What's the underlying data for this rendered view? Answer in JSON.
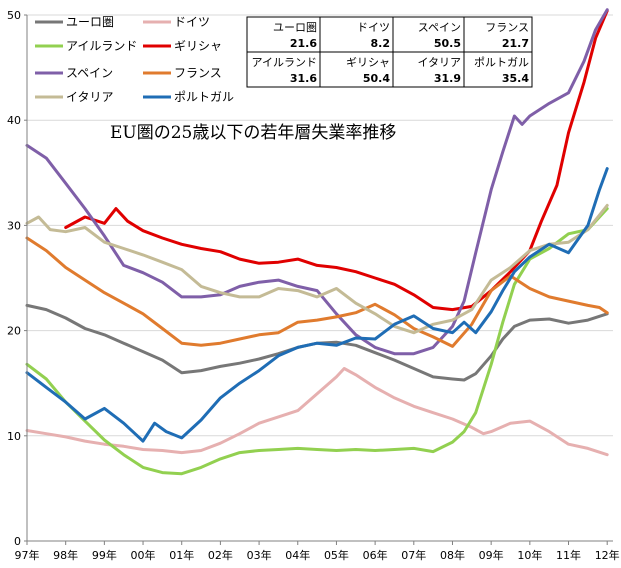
{
  "chart_data": {
    "type": "line",
    "title": "EU圏の25歳以下の若年層失業率推移",
    "xlabel": "",
    "ylabel": "",
    "ylim": [
      0,
      50
    ],
    "xlim": [
      1997,
      2012.15
    ],
    "y_ticks": [
      0,
      10,
      20,
      30,
      40,
      50
    ],
    "x_ticks": [
      {
        "value": 1997,
        "label": "97年"
      },
      {
        "value": 1998,
        "label": "98年"
      },
      {
        "value": 1999,
        "label": "99年"
      },
      {
        "value": 2000,
        "label": "00年"
      },
      {
        "value": 2001,
        "label": "01年"
      },
      {
        "value": 2002,
        "label": "02年"
      },
      {
        "value": 2003,
        "label": "03年"
      },
      {
        "value": 2004,
        "label": "04年"
      },
      {
        "value": 2005,
        "label": "05年"
      },
      {
        "value": 2006,
        "label": "06年"
      },
      {
        "value": 2007,
        "label": "07年"
      },
      {
        "value": 2008,
        "label": "08年"
      },
      {
        "value": 2009,
        "label": "09年"
      },
      {
        "value": 2010,
        "label": "10年"
      },
      {
        "value": 2011,
        "label": "11年"
      },
      {
        "value": 2012,
        "label": "12年"
      }
    ],
    "grid": true,
    "legend_position": "top-left",
    "series": [
      {
        "key": "euro",
        "name": "ユーロ圏",
        "color": "#777777",
        "points": [
          [
            1997,
            22.4
          ],
          [
            1997.5,
            22
          ],
          [
            1998,
            21.2
          ],
          [
            1998.5,
            20.2
          ],
          [
            1999,
            19.6
          ],
          [
            1999.5,
            18.8
          ],
          [
            2000,
            18
          ],
          [
            2000.5,
            17.2
          ],
          [
            2001,
            16
          ],
          [
            2001.5,
            16.2
          ],
          [
            2002,
            16.6
          ],
          [
            2002.5,
            16.9
          ],
          [
            2003,
            17.3
          ],
          [
            2003.5,
            17.8
          ],
          [
            2004,
            18.4
          ],
          [
            2004.5,
            18.8
          ],
          [
            2005,
            18.9
          ],
          [
            2005.5,
            18.6
          ],
          [
            2006,
            17.9
          ],
          [
            2006.5,
            17.2
          ],
          [
            2007,
            16.4
          ],
          [
            2007.5,
            15.6
          ],
          [
            2008,
            15.4
          ],
          [
            2008.3,
            15.3
          ],
          [
            2008.6,
            15.9
          ],
          [
            2009,
            17.6
          ],
          [
            2009.3,
            19.2
          ],
          [
            2009.6,
            20.4
          ],
          [
            2010,
            21
          ],
          [
            2010.5,
            21.1
          ],
          [
            2011,
            20.7
          ],
          [
            2011.5,
            21
          ],
          [
            2012,
            21.6
          ]
        ]
      },
      {
        "key": "germany",
        "name": "ドイツ",
        "color": "#e6b0b0",
        "points": [
          [
            1997,
            10.5
          ],
          [
            1997.5,
            10.2
          ],
          [
            1998,
            9.9
          ],
          [
            1998.5,
            9.5
          ],
          [
            1999,
            9.2
          ],
          [
            1999.5,
            9
          ],
          [
            2000,
            8.7
          ],
          [
            2000.5,
            8.6
          ],
          [
            2001,
            8.4
          ],
          [
            2001.5,
            8.6
          ],
          [
            2002,
            9.3
          ],
          [
            2002.5,
            10.2
          ],
          [
            2003,
            11.2
          ],
          [
            2003.5,
            11.8
          ],
          [
            2004,
            12.4
          ],
          [
            2004.5,
            14
          ],
          [
            2005,
            15.6
          ],
          [
            2005.2,
            16.4
          ],
          [
            2005.5,
            15.8
          ],
          [
            2006,
            14.6
          ],
          [
            2006.5,
            13.6
          ],
          [
            2007,
            12.8
          ],
          [
            2007.5,
            12.2
          ],
          [
            2008,
            11.6
          ],
          [
            2008.5,
            10.8
          ],
          [
            2008.8,
            10.2
          ],
          [
            2009,
            10.4
          ],
          [
            2009.5,
            11.2
          ],
          [
            2010,
            11.4
          ],
          [
            2010.5,
            10.4
          ],
          [
            2011,
            9.2
          ],
          [
            2011.5,
            8.8
          ],
          [
            2012,
            8.2
          ]
        ]
      },
      {
        "key": "ireland",
        "name": "アイルランド",
        "color": "#92d050",
        "points": [
          [
            1997,
            16.8
          ],
          [
            1997.5,
            15.4
          ],
          [
            1998,
            13.2
          ],
          [
            1998.5,
            11.4
          ],
          [
            1999,
            9.6
          ],
          [
            1999.5,
            8.2
          ],
          [
            2000,
            7
          ],
          [
            2000.5,
            6.5
          ],
          [
            2001,
            6.4
          ],
          [
            2001.5,
            7
          ],
          [
            2002,
            7.8
          ],
          [
            2002.5,
            8.4
          ],
          [
            2003,
            8.6
          ],
          [
            2003.5,
            8.7
          ],
          [
            2004,
            8.8
          ],
          [
            2004.5,
            8.7
          ],
          [
            2005,
            8.6
          ],
          [
            2005.5,
            8.7
          ],
          [
            2006,
            8.6
          ],
          [
            2006.5,
            8.7
          ],
          [
            2007,
            8.8
          ],
          [
            2007.5,
            8.5
          ],
          [
            2008,
            9.4
          ],
          [
            2008.3,
            10.4
          ],
          [
            2008.6,
            12.2
          ],
          [
            2009,
            16.8
          ],
          [
            2009.3,
            20.8
          ],
          [
            2009.6,
            24.4
          ],
          [
            2010,
            26.8
          ],
          [
            2010.5,
            27.8
          ],
          [
            2011,
            29.2
          ],
          [
            2011.5,
            29.6
          ],
          [
            2012,
            31.6
          ]
        ]
      },
      {
        "key": "greece",
        "name": "ギリシャ",
        "color": "#e00000",
        "points": [
          [
            1998,
            29.8
          ],
          [
            1998.5,
            30.8
          ],
          [
            1999,
            30.2
          ],
          [
            1999.3,
            31.6
          ],
          [
            1999.6,
            30.4
          ],
          [
            2000,
            29.5
          ],
          [
            2000.5,
            28.8
          ],
          [
            2001,
            28.2
          ],
          [
            2001.5,
            27.8
          ],
          [
            2002,
            27.5
          ],
          [
            2002.5,
            26.8
          ],
          [
            2003,
            26.4
          ],
          [
            2003.5,
            26.5
          ],
          [
            2004,
            26.8
          ],
          [
            2004.5,
            26.2
          ],
          [
            2005,
            26
          ],
          [
            2005.5,
            25.6
          ],
          [
            2006,
            25
          ],
          [
            2006.5,
            24.4
          ],
          [
            2007,
            23.4
          ],
          [
            2007.5,
            22.2
          ],
          [
            2008,
            22
          ],
          [
            2008.5,
            22.3
          ],
          [
            2009,
            23.8
          ],
          [
            2009.5,
            25.6
          ],
          [
            2010,
            27.6
          ],
          [
            2010.3,
            30.4
          ],
          [
            2010.7,
            33.8
          ],
          [
            2011,
            38.8
          ],
          [
            2011.4,
            43.6
          ],
          [
            2011.7,
            47.8
          ],
          [
            2012,
            50.4
          ]
        ]
      },
      {
        "key": "spain",
        "name": "スペイン",
        "color": "#7f5fa8",
        "points": [
          [
            1997,
            37.6
          ],
          [
            1997.5,
            36.4
          ],
          [
            1998,
            34
          ],
          [
            1998.5,
            31.6
          ],
          [
            1999,
            29
          ],
          [
            1999.5,
            26.2
          ],
          [
            2000,
            25.5
          ],
          [
            2000.5,
            24.6
          ],
          [
            2001,
            23.2
          ],
          [
            2001.5,
            23.2
          ],
          [
            2002,
            23.4
          ],
          [
            2002.5,
            24.2
          ],
          [
            2003,
            24.6
          ],
          [
            2003.5,
            24.8
          ],
          [
            2004,
            24.2
          ],
          [
            2004.5,
            23.8
          ],
          [
            2005,
            21.6
          ],
          [
            2005.5,
            19.6
          ],
          [
            2006,
            18.4
          ],
          [
            2006.5,
            17.8
          ],
          [
            2007,
            17.8
          ],
          [
            2007.5,
            18.4
          ],
          [
            2008,
            20.4
          ],
          [
            2008.3,
            22.8
          ],
          [
            2008.6,
            27.4
          ],
          [
            2009,
            33.4
          ],
          [
            2009.3,
            37
          ],
          [
            2009.6,
            40.4
          ],
          [
            2009.8,
            39.6
          ],
          [
            2010,
            40.4
          ],
          [
            2010.5,
            41.6
          ],
          [
            2011,
            42.6
          ],
          [
            2011.4,
            45.6
          ],
          [
            2011.7,
            48.6
          ],
          [
            2012,
            50.5
          ]
        ]
      },
      {
        "key": "france",
        "name": "フランス",
        "color": "#e07b2e",
        "points": [
          [
            1997,
            28.8
          ],
          [
            1997.5,
            27.6
          ],
          [
            1998,
            26
          ],
          [
            1998.5,
            24.8
          ],
          [
            1999,
            23.6
          ],
          [
            1999.5,
            22.6
          ],
          [
            2000,
            21.6
          ],
          [
            2000.5,
            20.2
          ],
          [
            2001,
            18.8
          ],
          [
            2001.5,
            18.6
          ],
          [
            2002,
            18.8
          ],
          [
            2002.5,
            19.2
          ],
          [
            2003,
            19.6
          ],
          [
            2003.5,
            19.8
          ],
          [
            2004,
            20.8
          ],
          [
            2004.5,
            21
          ],
          [
            2005,
            21.3
          ],
          [
            2005.5,
            21.7
          ],
          [
            2006,
            22.5
          ],
          [
            2006.5,
            21.5
          ],
          [
            2007,
            20.2
          ],
          [
            2007.5,
            19.4
          ],
          [
            2008,
            18.5
          ],
          [
            2008.5,
            20.6
          ],
          [
            2009,
            23.8
          ],
          [
            2009.5,
            25.2
          ],
          [
            2010,
            24
          ],
          [
            2010.5,
            23.2
          ],
          [
            2011,
            22.8
          ],
          [
            2011.5,
            22.4
          ],
          [
            2011.8,
            22.2
          ],
          [
            2012,
            21.7
          ]
        ]
      },
      {
        "key": "italy",
        "name": "イタリア",
        "color": "#c4bb96",
        "points": [
          [
            1997,
            30.2
          ],
          [
            1997.3,
            30.8
          ],
          [
            1997.6,
            29.6
          ],
          [
            1998,
            29.4
          ],
          [
            1998.5,
            29.8
          ],
          [
            1999,
            28.4
          ],
          [
            1999.5,
            27.8
          ],
          [
            2000,
            27.2
          ],
          [
            2000.5,
            26.5
          ],
          [
            2001,
            25.8
          ],
          [
            2001.5,
            24.2
          ],
          [
            2002,
            23.6
          ],
          [
            2002.5,
            23.2
          ],
          [
            2003,
            23.2
          ],
          [
            2003.5,
            24
          ],
          [
            2004,
            23.8
          ],
          [
            2004.5,
            23.2
          ],
          [
            2005,
            24
          ],
          [
            2005.5,
            22.6
          ],
          [
            2006,
            21.6
          ],
          [
            2006.5,
            20.4
          ],
          [
            2007,
            19.8
          ],
          [
            2007.5,
            20.6
          ],
          [
            2008,
            21
          ],
          [
            2008.5,
            22
          ],
          [
            2009,
            24.8
          ],
          [
            2009.5,
            26
          ],
          [
            2010,
            27.6
          ],
          [
            2010.5,
            28.2
          ],
          [
            2011,
            28.4
          ],
          [
            2011.5,
            29.6
          ],
          [
            2012,
            31.9
          ]
        ]
      },
      {
        "key": "portugal",
        "name": "ポルトガル",
        "color": "#1f6db5",
        "points": [
          [
            1997,
            16
          ],
          [
            1997.5,
            14.6
          ],
          [
            1998,
            13.2
          ],
          [
            1998.5,
            11.6
          ],
          [
            1999,
            12.6
          ],
          [
            1999.5,
            11.2
          ],
          [
            2000,
            9.5
          ],
          [
            2000.3,
            11.2
          ],
          [
            2000.6,
            10.4
          ],
          [
            2001,
            9.8
          ],
          [
            2001.5,
            11.5
          ],
          [
            2002,
            13.6
          ],
          [
            2002.5,
            15
          ],
          [
            2003,
            16.2
          ],
          [
            2003.5,
            17.6
          ],
          [
            2004,
            18.4
          ],
          [
            2004.5,
            18.8
          ],
          [
            2005,
            18.6
          ],
          [
            2005.5,
            19.3
          ],
          [
            2006,
            19.2
          ],
          [
            2006.5,
            20.6
          ],
          [
            2007,
            21.4
          ],
          [
            2007.5,
            20.2
          ],
          [
            2008,
            19.8
          ],
          [
            2008.3,
            20.8
          ],
          [
            2008.6,
            19.8
          ],
          [
            2009,
            21.8
          ],
          [
            2009.3,
            23.8
          ],
          [
            2009.6,
            25.6
          ],
          [
            2010,
            27
          ],
          [
            2010.5,
            28.2
          ],
          [
            2011,
            27.4
          ],
          [
            2011.5,
            30
          ],
          [
            2011.8,
            33.4
          ],
          [
            2012,
            35.4
          ]
        ]
      }
    ],
    "legend": {
      "items": [
        {
          "key": "euro",
          "label": "ユーロ圏"
        },
        {
          "key": "germany",
          "label": "ドイツ"
        },
        {
          "key": "ireland",
          "label": "アイルランド"
        },
        {
          "key": "greece",
          "label": "ギリシャ"
        },
        {
          "key": "spain",
          "label": "スペイン"
        },
        {
          "key": "france",
          "label": "フランス"
        },
        {
          "key": "italy",
          "label": "イタリア"
        },
        {
          "key": "portugal",
          "label": "ポルトガル"
        }
      ]
    },
    "latest_values_table": [
      [
        {
          "name": "ユーロ圏",
          "value": "21.6"
        },
        {
          "name": "ドイツ",
          "value": "8.2"
        },
        {
          "name": "スペイン",
          "value": "50.5"
        },
        {
          "name": "フランス",
          "value": "21.7"
        }
      ],
      [
        {
          "name": "アイルランド",
          "value": "31.6"
        },
        {
          "name": "ギリシャ",
          "value": "50.4"
        },
        {
          "name": "イタリア",
          "value": "31.9"
        },
        {
          "name": "ポルトガル",
          "value": "35.4"
        }
      ]
    ]
  }
}
